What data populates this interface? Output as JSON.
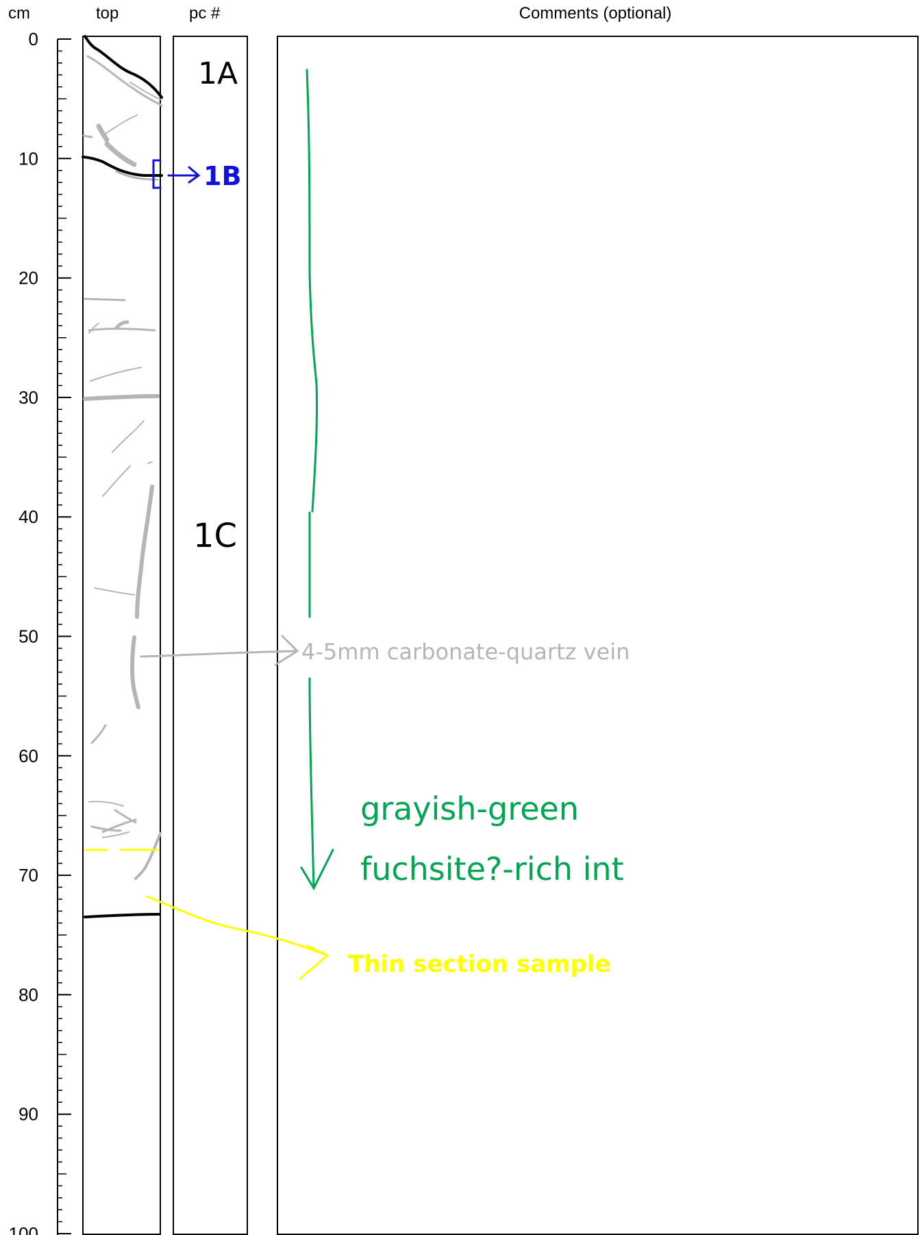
{
  "headers": {
    "cm": "cm",
    "top": "top",
    "pc": "pc #",
    "comments": "Comments (optional)"
  },
  "scale": {
    "unit": "cm",
    "min": 0,
    "max": 100,
    "labels": [
      "0",
      "10",
      "20",
      "30",
      "40",
      "50",
      "60",
      "70",
      "80",
      "90",
      "100"
    ]
  },
  "pieces": [
    {
      "label": "1A",
      "depth_cm": 3
    },
    {
      "label": "1B",
      "depth_cm": 11
    },
    {
      "label": "1C",
      "depth_cm": 41
    }
  ],
  "annotations": {
    "vein": "4-5mm carbonate-quartz vein",
    "lithology_line1": "grayish-green",
    "lithology_line2": "fuchsite?-rich int",
    "sample": "Thin section sample"
  },
  "colors": {
    "piece_boundary": "#000000",
    "veins": "#b5b5b5",
    "piece_marker": "#1010e0",
    "lithology": "#00a651",
    "sample": "#ffff00"
  }
}
